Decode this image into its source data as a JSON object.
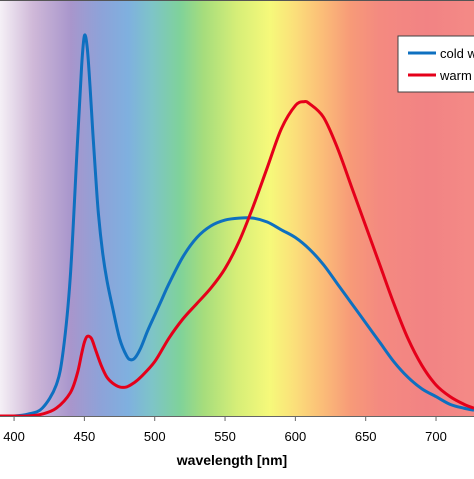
{
  "chart_data": {
    "type": "line",
    "xlabel": "wavelength [nm]",
    "ylabel": "",
    "xlim": [
      390,
      727
    ],
    "ylim": [
      0,
      1.0
    ],
    "x_ticks": [
      400,
      450,
      500,
      550,
      600,
      650,
      700
    ],
    "grid": false,
    "legend_position": "top-right",
    "background": "visible spectrum color gradient",
    "series": [
      {
        "name": "cold w",
        "color": "#0e70c0",
        "x": [
          390,
          400,
          410,
          420,
          430,
          435,
          440,
          445,
          448,
          450,
          452,
          454,
          456,
          458,
          460,
          463,
          466,
          470,
          475,
          480,
          483,
          486,
          490,
          495,
          500,
          505,
          510,
          520,
          530,
          540,
          550,
          560,
          570,
          580,
          590,
          600,
          610,
          620,
          630,
          640,
          650,
          660,
          670,
          680,
          690,
          700,
          710,
          720,
          727
        ],
        "y": [
          0.0,
          0.0,
          0.005,
          0.02,
          0.08,
          0.17,
          0.36,
          0.7,
          0.9,
          0.98,
          0.95,
          0.85,
          0.73,
          0.62,
          0.52,
          0.42,
          0.35,
          0.28,
          0.2,
          0.155,
          0.145,
          0.15,
          0.175,
          0.22,
          0.26,
          0.3,
          0.34,
          0.41,
          0.46,
          0.49,
          0.505,
          0.51,
          0.51,
          0.5,
          0.48,
          0.46,
          0.43,
          0.39,
          0.34,
          0.29,
          0.24,
          0.19,
          0.14,
          0.1,
          0.07,
          0.05,
          0.03,
          0.02,
          0.015
        ]
      },
      {
        "name": "warm",
        "color": "#e5001a",
        "x": [
          390,
          400,
          410,
          420,
          430,
          440,
          445,
          448,
          450,
          452,
          455,
          458,
          462,
          466,
          470,
          475,
          480,
          485,
          490,
          500,
          510,
          520,
          530,
          540,
          550,
          560,
          570,
          580,
          590,
          600,
          606,
          610,
          620,
          630,
          640,
          650,
          660,
          670,
          680,
          690,
          700,
          710,
          720,
          727
        ],
        "y": [
          0.0,
          0.0,
          0.0,
          0.005,
          0.02,
          0.06,
          0.11,
          0.16,
          0.19,
          0.205,
          0.2,
          0.17,
          0.13,
          0.1,
          0.085,
          0.075,
          0.075,
          0.085,
          0.1,
          0.14,
          0.2,
          0.25,
          0.29,
          0.33,
          0.38,
          0.45,
          0.54,
          0.64,
          0.74,
          0.8,
          0.81,
          0.805,
          0.77,
          0.69,
          0.59,
          0.49,
          0.39,
          0.29,
          0.2,
          0.13,
          0.08,
          0.05,
          0.03,
          0.02
        ]
      }
    ]
  }
}
